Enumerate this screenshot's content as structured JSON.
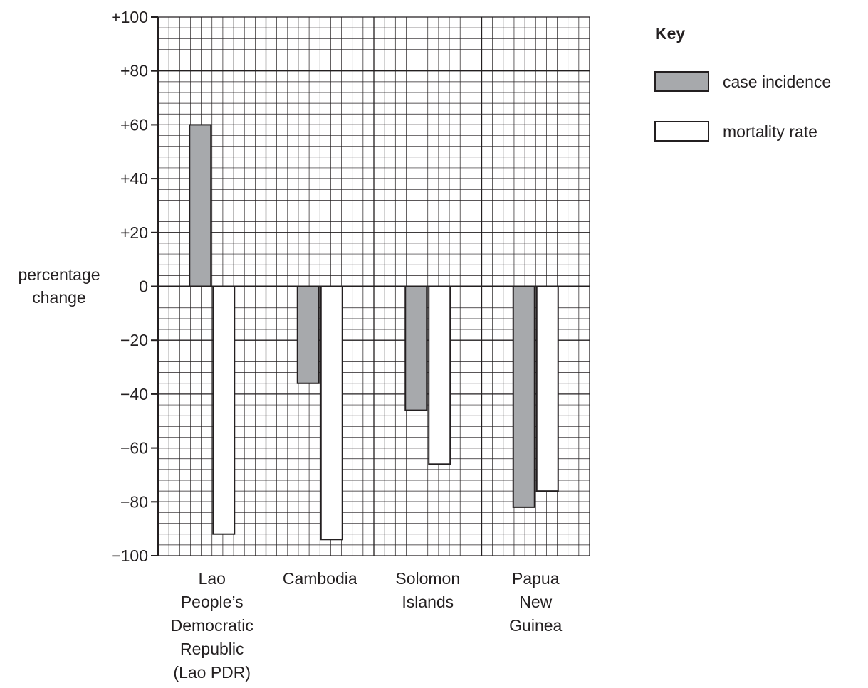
{
  "chart_data": {
    "type": "bar",
    "ylabel": [
      "percentage",
      "change"
    ],
    "ylim": [
      -100,
      100
    ],
    "yticks": [
      {
        "value": 100,
        "label": "+100"
      },
      {
        "value": 80,
        "label": "+80"
      },
      {
        "value": 60,
        "label": "+60"
      },
      {
        "value": 40,
        "label": "+40"
      },
      {
        "value": 20,
        "label": "+20"
      },
      {
        "value": 0,
        "label": "0"
      },
      {
        "value": -20,
        "label": "−20"
      },
      {
        "value": -40,
        "label": "−40"
      },
      {
        "value": -60,
        "label": "−60"
      },
      {
        "value": -80,
        "label": "−80"
      },
      {
        "value": -100,
        "label": "−100"
      }
    ],
    "categories": [
      [
        "Lao",
        "People’s",
        "Democratic",
        "Republic",
        "(Lao PDR)"
      ],
      [
        "Cambodia"
      ],
      [
        "Solomon",
        "Islands"
      ],
      [
        "Papua",
        "New",
        "Guinea"
      ]
    ],
    "series": [
      {
        "name": "case incidence",
        "color": "#a7a9ac",
        "values": [
          60,
          -36,
          -46,
          -82
        ]
      },
      {
        "name": "mortality rate",
        "color": "#ffffff",
        "values": [
          -92,
          -94,
          -66,
          -76
        ]
      }
    ],
    "grid": true,
    "legend": {
      "title": "Key",
      "position": "top-right"
    }
  }
}
